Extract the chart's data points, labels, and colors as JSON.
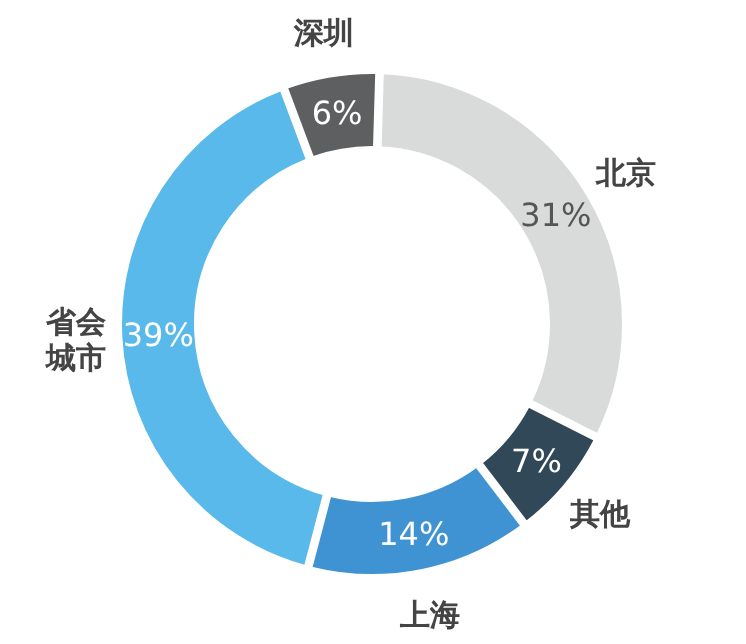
{
  "chart_data": {
    "type": "donut",
    "categories": [
      "北京",
      "其他",
      "上海",
      "省会城市",
      "深圳"
    ],
    "values": [
      31,
      7,
      14,
      39,
      6
    ],
    "value_labels": [
      "31%",
      "7%",
      "14%",
      "39%",
      "6%"
    ],
    "colors": [
      "#d9dada",
      "#304858",
      "#3f93d3",
      "#59b9ea",
      "#5e5f60"
    ]
  }
}
